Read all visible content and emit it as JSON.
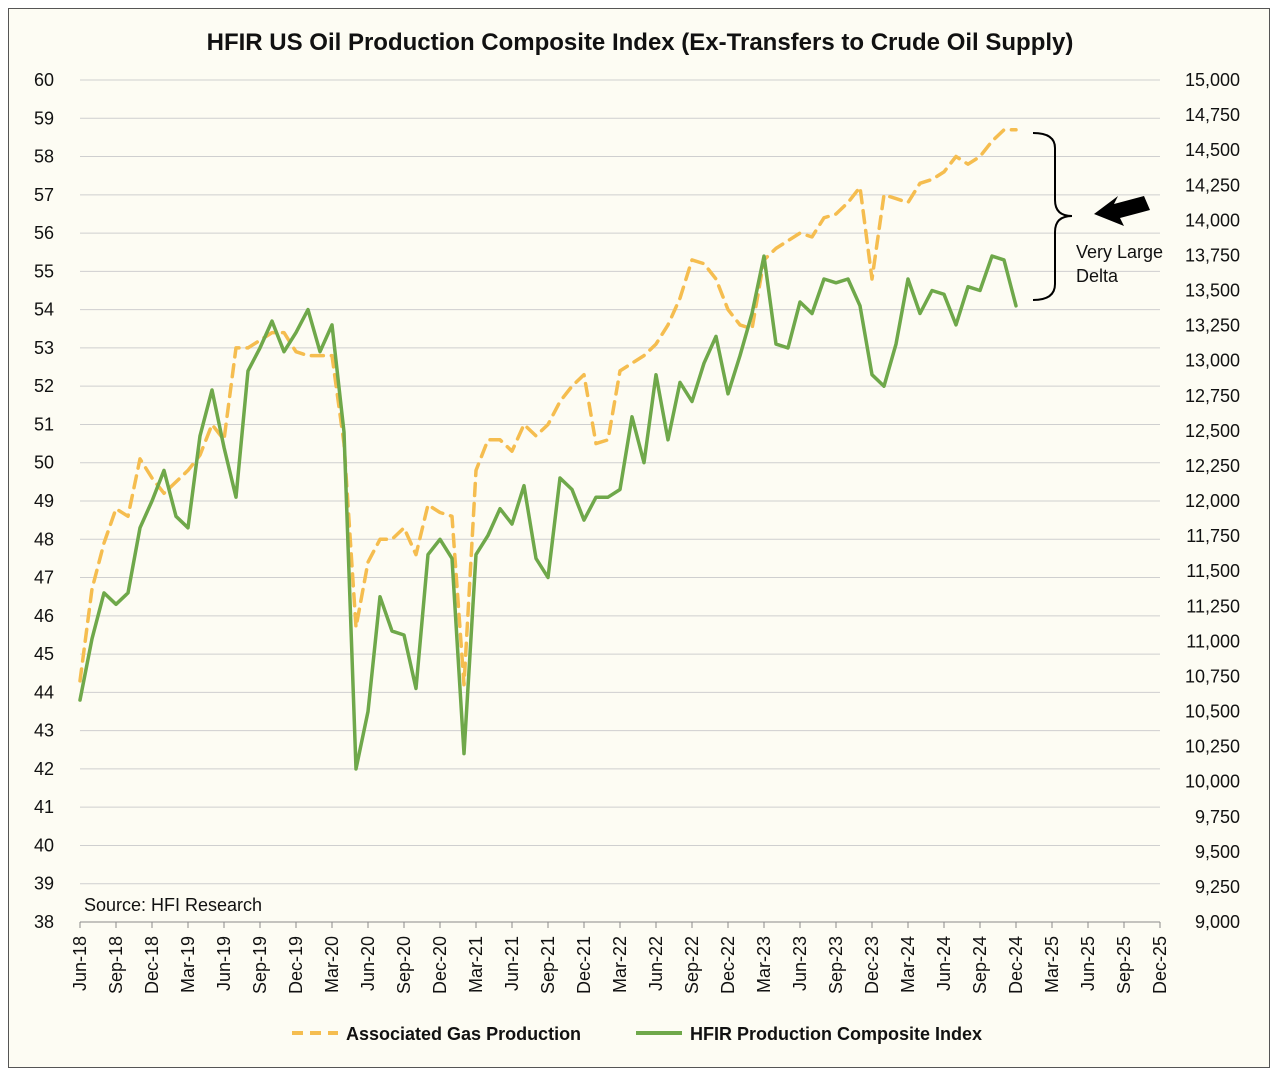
{
  "chart_data": {
    "type": "line",
    "title": "HFIR US Oil Production Composite Index (Ex-Transfers to Crude Oil Supply)",
    "source_note": "Source: HFI Research",
    "annotation": "Very Large Delta",
    "annotation_lines": [
      "Very Large",
      "Delta"
    ],
    "x_ticks": [
      "Jun-18",
      "Sep-18",
      "Dec-18",
      "Mar-19",
      "Jun-19",
      "Sep-19",
      "Dec-19",
      "Mar-20",
      "Jun-20",
      "Sep-20",
      "Dec-20",
      "Mar-21",
      "Jun-21",
      "Sep-21",
      "Dec-21",
      "Mar-22",
      "Jun-22",
      "Sep-22",
      "Dec-22",
      "Mar-23",
      "Jun-23",
      "Sep-23",
      "Dec-23",
      "Mar-24",
      "Jun-24",
      "Sep-24",
      "Dec-24",
      "Mar-25",
      "Jun-25",
      "Sep-25",
      "Dec-25"
    ],
    "x_range": [
      "Jun-18",
      "Dec-25"
    ],
    "y_left": {
      "min": 38,
      "max": 60,
      "step": 1,
      "tick_labels": [
        "38",
        "39",
        "40",
        "41",
        "42",
        "43",
        "44",
        "45",
        "46",
        "47",
        "48",
        "49",
        "50",
        "51",
        "52",
        "53",
        "54",
        "55",
        "56",
        "57",
        "58",
        "59",
        "60"
      ]
    },
    "y_right": {
      "min": 9000,
      "max": 15000,
      "step": 250,
      "tick_labels": [
        "9,000",
        "9,250",
        "9,500",
        "9,750",
        "10,000",
        "10,250",
        "10,500",
        "10,750",
        "11,000",
        "11,250",
        "11,500",
        "11,750",
        "12,000",
        "12,250",
        "12,500",
        "12,750",
        "13,000",
        "13,250",
        "13,500",
        "13,750",
        "14,000",
        "14,250",
        "14,500",
        "14,750",
        "15,000"
      ]
    },
    "grid": "horizontal",
    "legend_position": "bottom",
    "x": [
      "Jun-18",
      "Jul-18",
      "Aug-18",
      "Sep-18",
      "Oct-18",
      "Nov-18",
      "Dec-18",
      "Jan-19",
      "Feb-19",
      "Mar-19",
      "Apr-19",
      "May-19",
      "Jun-19",
      "Jul-19",
      "Aug-19",
      "Sep-19",
      "Oct-19",
      "Nov-19",
      "Dec-19",
      "Jan-20",
      "Feb-20",
      "Mar-20",
      "Apr-20",
      "May-20",
      "Jun-20",
      "Jul-20",
      "Aug-20",
      "Sep-20",
      "Oct-20",
      "Nov-20",
      "Dec-20",
      "Jan-21",
      "Feb-21",
      "Mar-21",
      "Apr-21",
      "May-21",
      "Jun-21",
      "Jul-21",
      "Aug-21",
      "Sep-21",
      "Oct-21",
      "Nov-21",
      "Dec-21",
      "Jan-22",
      "Feb-22",
      "Mar-22",
      "Apr-22",
      "May-22",
      "Jun-22",
      "Jul-22",
      "Aug-22",
      "Sep-22",
      "Oct-22",
      "Nov-22",
      "Dec-22",
      "Jan-23",
      "Feb-23",
      "Mar-23",
      "Apr-23",
      "May-23",
      "Jun-23",
      "Jul-23",
      "Aug-23",
      "Sep-23",
      "Oct-23",
      "Nov-23",
      "Dec-23",
      "Jan-24",
      "Feb-24",
      "Mar-24",
      "Apr-24",
      "May-24",
      "Jun-24",
      "Jul-24",
      "Aug-24",
      "Sep-24",
      "Oct-24",
      "Nov-24",
      "Dec-24"
    ],
    "series": [
      {
        "name": "Associated Gas Production",
        "axis": "left",
        "color": "#f5bd4f",
        "style": "dashed",
        "values": [
          44.3,
          46.7,
          47.9,
          48.8,
          48.6,
          50.1,
          49.6,
          49.2,
          49.5,
          49.8,
          50.2,
          51.0,
          50.6,
          53.0,
          53.0,
          53.2,
          53.4,
          53.4,
          52.9,
          52.8,
          52.8,
          52.8,
          50.5,
          45.7,
          47.4,
          48.0,
          48.0,
          48.3,
          47.6,
          48.9,
          48.7,
          48.6,
          44.2,
          49.8,
          50.6,
          50.6,
          50.3,
          51.0,
          50.7,
          51.0,
          51.6,
          52.0,
          52.3,
          50.5,
          50.6,
          52.4,
          52.6,
          52.8,
          53.1,
          53.6,
          54.3,
          55.3,
          55.2,
          54.8,
          54.0,
          53.6,
          53.5,
          55.3,
          55.6,
          55.8,
          56.0,
          55.9,
          56.4,
          56.5,
          56.8,
          57.2,
          54.8,
          57.0,
          56.9,
          56.8,
          57.3,
          57.4,
          57.6,
          58.0,
          57.8,
          58.0,
          58.4,
          58.7,
          58.7
        ]
      },
      {
        "name": "HFIR Production Composite Index",
        "axis": "left",
        "color": "#6fa84a",
        "style": "solid",
        "values": [
          43.8,
          45.4,
          46.6,
          46.3,
          46.6,
          48.3,
          49.0,
          49.8,
          48.6,
          48.3,
          50.7,
          51.9,
          50.4,
          49.1,
          52.4,
          53.0,
          53.7,
          52.9,
          53.4,
          54.0,
          52.9,
          53.6,
          50.8,
          42.0,
          43.5,
          46.5,
          45.6,
          45.5,
          44.1,
          47.6,
          48.0,
          47.5,
          42.4,
          47.6,
          48.1,
          48.8,
          48.4,
          49.4,
          47.5,
          47.0,
          49.6,
          49.3,
          48.5,
          49.1,
          49.1,
          49.3,
          51.2,
          50.0,
          52.3,
          50.6,
          52.1,
          51.6,
          52.6,
          53.3,
          51.8,
          52.8,
          53.9,
          55.4,
          53.1,
          53.0,
          54.2,
          53.9,
          54.8,
          54.7,
          54.8,
          54.1,
          52.3,
          52.0,
          53.1,
          54.8,
          53.9,
          54.5,
          54.4,
          53.6,
          54.6,
          54.5,
          55.4,
          55.3,
          54.1
        ]
      }
    ]
  }
}
